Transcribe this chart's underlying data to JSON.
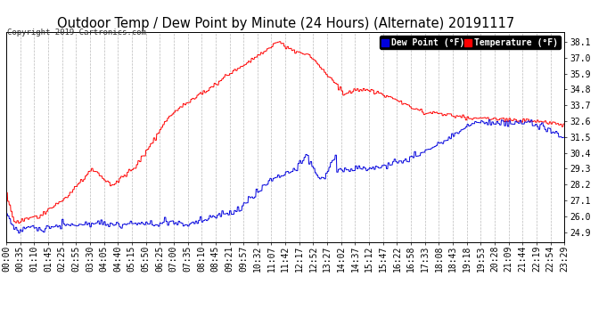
{
  "title": "Outdoor Temp / Dew Point by Minute (24 Hours) (Alternate) 20191117",
  "copyright": "Copyright 2019 Cartronics.com",
  "legend_dew": "Dew Point (°F)",
  "legend_temp": "Temperature (°F)",
  "yticks": [
    24.9,
    26.0,
    27.1,
    28.2,
    29.3,
    30.4,
    31.5,
    32.6,
    33.7,
    34.8,
    35.9,
    37.0,
    38.1
  ],
  "ylim": [
    24.2,
    38.8
  ],
  "color_temp": "#ff0000",
  "color_dew": "#0000dd",
  "color_grid": "#bbbbbb",
  "bg_color": "#ffffff",
  "title_fontsize": 10.5,
  "tick_fontsize": 7,
  "xtick_labels": [
    "00:00",
    "00:35",
    "01:10",
    "01:45",
    "02:25",
    "02:55",
    "03:30",
    "04:05",
    "04:40",
    "05:15",
    "05:50",
    "06:25",
    "07:00",
    "07:35",
    "08:10",
    "08:45",
    "09:21",
    "09:57",
    "10:32",
    "11:07",
    "11:42",
    "12:17",
    "12:52",
    "13:27",
    "14:02",
    "14:37",
    "15:12",
    "15:47",
    "16:22",
    "16:58",
    "17:33",
    "18:08",
    "18:43",
    "19:18",
    "19:53",
    "20:28",
    "21:09",
    "21:44",
    "22:19",
    "22:54",
    "23:29"
  ]
}
